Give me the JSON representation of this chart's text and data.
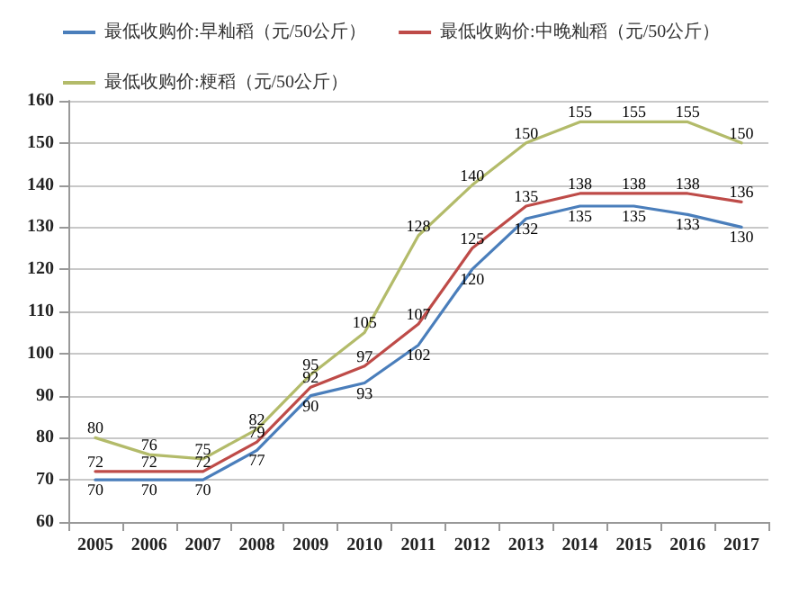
{
  "chart_data": {
    "type": "line",
    "categories": [
      "2005",
      "2006",
      "2007",
      "2008",
      "2009",
      "2010",
      "2011",
      "2012",
      "2013",
      "2014",
      "2015",
      "2016",
      "2017"
    ],
    "series": [
      {
        "name": "最低收购价:早籼稻（元/50公斤）",
        "color": "#4a7ebb",
        "values": [
          70,
          70,
          70,
          77,
          90,
          93,
          102,
          120,
          132,
          135,
          135,
          133,
          130
        ]
      },
      {
        "name": "最低收购价:中晚籼稻（元/50公斤）",
        "color": "#be4b48",
        "values": [
          72,
          72,
          72,
          79,
          92,
          97,
          107,
          125,
          135,
          138,
          138,
          138,
          136
        ]
      },
      {
        "name": "最低收购价:粳稻（元/50公斤）",
        "color": "#b3bb6a",
        "values": [
          80,
          76,
          75,
          82,
          95,
          105,
          128,
          140,
          150,
          155,
          155,
          155,
          150
        ]
      }
    ],
    "ylim": [
      60,
      160
    ],
    "yticks": [
      60,
      70,
      80,
      90,
      100,
      110,
      120,
      130,
      140,
      150,
      160
    ],
    "grid": "y",
    "legend": "top left",
    "marker": "none",
    "line_style": "solid",
    "data_labels": true
  }
}
